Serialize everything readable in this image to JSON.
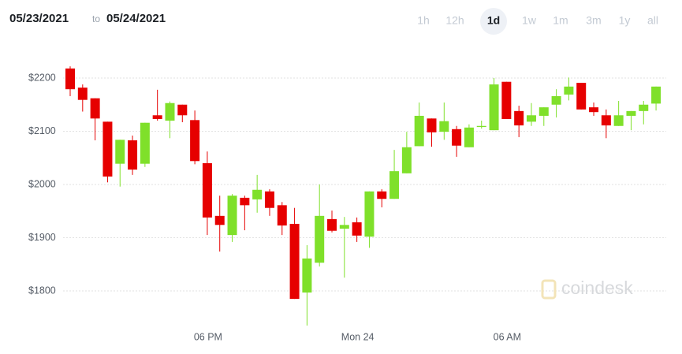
{
  "header": {
    "from": "05/23/2021",
    "separator": "to",
    "to": "05/24/2021",
    "range_buttons": [
      {
        "label": "1h",
        "active": false
      },
      {
        "label": "12h",
        "active": false
      },
      {
        "label": "1d",
        "active": true
      },
      {
        "label": "1w",
        "active": false
      },
      {
        "label": "1m",
        "active": false
      },
      {
        "label": "3m",
        "active": false
      },
      {
        "label": "1y",
        "active": false
      },
      {
        "label": "all",
        "active": false
      }
    ]
  },
  "chart_data": {
    "type": "candlestick",
    "watermark": "coindesk",
    "categories": [
      null,
      null,
      null,
      null,
      null,
      null,
      null,
      null,
      null,
      null,
      null,
      "06 PM",
      null,
      null,
      null,
      null,
      null,
      null,
      null,
      null,
      null,
      null,
      null,
      "Mon 24",
      null,
      null,
      null,
      null,
      null,
      null,
      null,
      null,
      null,
      null,
      null,
      "06 AM",
      null,
      null,
      null,
      null,
      null,
      null,
      null,
      null,
      null,
      null,
      null,
      null
    ],
    "open": [
      2218,
      2182,
      2162,
      2118,
      2039,
      2083,
      2039,
      2130,
      2120,
      2150,
      2121,
      2040,
      1941,
      1905,
      1975,
      1972,
      1987,
      1961,
      1926,
      1797,
      1853,
      1935,
      1917,
      1929,
      1902,
      1987,
      1973,
      2021,
      2072,
      2124,
      2099,
      2104,
      2070,
      2108,
      2102,
      2193,
      2138,
      2118,
      2129,
      2150,
      2169,
      2191,
      2145,
      2130,
      2110,
      2129,
      2138,
      2152
    ],
    "high": [
      2222,
      2188,
      2162,
      2118,
      2084,
      2092,
      2116,
      2178,
      2156,
      2150,
      2139,
      2062,
      1979,
      1982,
      1979,
      2018,
      1991,
      1967,
      1956,
      1886,
      2000,
      1951,
      1939,
      1938,
      1987,
      1991,
      2065,
      2099,
      2154,
      2124,
      2154,
      2110,
      2113,
      2120,
      2200,
      2193,
      2148,
      2153,
      2145,
      2179,
      2201,
      2191,
      2154,
      2141,
      2157,
      2138,
      2157,
      2184
    ],
    "low": [
      2166,
      2137,
      2083,
      2004,
      1996,
      2018,
      2033,
      2120,
      2087,
      2117,
      2038,
      1905,
      1874,
      1892,
      1914,
      1947,
      1941,
      1905,
      1785,
      1735,
      1846,
      1910,
      1825,
      1892,
      1881,
      1957,
      1973,
      2021,
      2072,
      2071,
      2084,
      2052,
      2070,
      2105,
      2102,
      2123,
      2089,
      2110,
      2110,
      2126,
      2158,
      2141,
      2129,
      2087,
      2110,
      2102,
      2113,
      2139
    ],
    "close": [
      2179,
      2159,
      2124,
      2015,
      2084,
      2028,
      2116,
      2123,
      2153,
      2130,
      2044,
      1938,
      1924,
      1979,
      1961,
      1990,
      1956,
      1923,
      1785,
      1861,
      1941,
      1913,
      1924,
      1904,
      1987,
      1973,
      2025,
      2070,
      2129,
      2098,
      2119,
      2073,
      2107,
      2110,
      2188,
      2123,
      2111,
      2130,
      2145,
      2166,
      2184,
      2141,
      2136,
      2111,
      2130,
      2138,
      2150,
      2184
    ],
    "up_color": "#7fe02a",
    "down_color": "#e60000",
    "ylim": [
      1730,
      2230
    ],
    "yticks": [
      {
        "value": 1800,
        "label": "$1800"
      },
      {
        "value": 1900,
        "label": "$1900"
      },
      {
        "value": 2000,
        "label": "$2000"
      },
      {
        "value": 2100,
        "label": "$2100"
      },
      {
        "value": 2200,
        "label": "$2200"
      }
    ],
    "grid": true
  }
}
